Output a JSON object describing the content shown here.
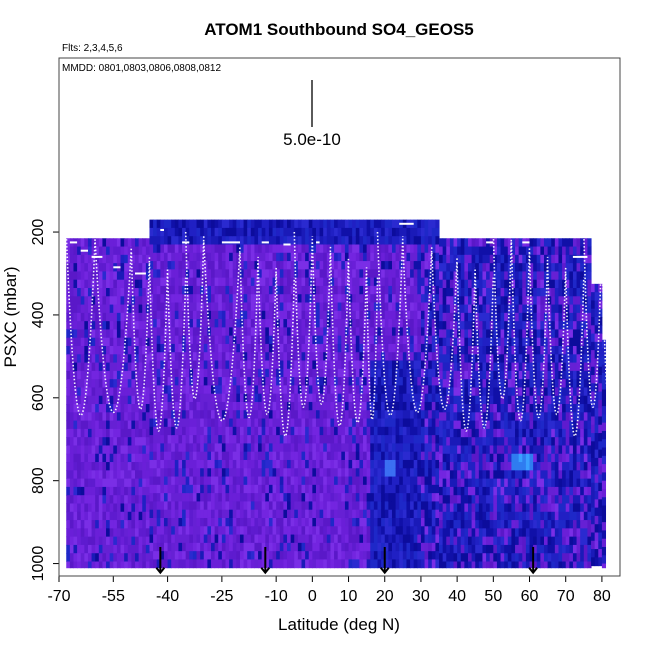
{
  "chart_data": {
    "type": "heatmap",
    "title": "ATOM1 Southbound SO4_GEOS5",
    "flights_note": "Flts: 2,3,4,5,6",
    "date_note": "MMDD: 0801,0803,0806,0808,0812",
    "scale_label": "5.0e-10",
    "xlabel": "Latitude (deg N)",
    "ylabel": "PSXC (mbar)",
    "xlim": [
      -70,
      85
    ],
    "ylim": [
      1030,
      -220
    ],
    "x_ticks": [
      -70,
      -55,
      -40,
      -25,
      -10,
      0,
      10,
      20,
      30,
      40,
      50,
      60,
      70,
      80
    ],
    "x_tick_labels": [
      "-70",
      "-55",
      "-40",
      "-25",
      "-10",
      "0",
      "10",
      "20",
      "30",
      "40",
      "50",
      "60",
      "70",
      "80"
    ],
    "y_ticks": [
      200,
      400,
      600,
      800,
      1000
    ],
    "y_tick_labels": [
      "200",
      "400",
      "600",
      "800",
      "1000"
    ],
    "flight_boundary_latitudes": [
      -42,
      -13,
      20,
      61
    ],
    "profile_turn_latitudes": [
      -68,
      -60,
      -50,
      -45,
      -40,
      -35,
      -30,
      -20,
      -15,
      -10,
      -5,
      0,
      5,
      10,
      15,
      18,
      25,
      33,
      40,
      45,
      50,
      55,
      60,
      65,
      70,
      75,
      80
    ],
    "ceiling_segments": [
      {
        "lat": [
          -67,
          -65
        ],
        "pressure_mbar": 225
      },
      {
        "lat": [
          -64,
          -62
        ],
        "pressure_mbar": 245
      },
      {
        "lat": [
          -61,
          -58
        ],
        "pressure_mbar": 260
      },
      {
        "lat": [
          -55,
          -53
        ],
        "pressure_mbar": 285
      },
      {
        "lat": [
          -49,
          -46
        ],
        "pressure_mbar": 300
      },
      {
        "lat": [
          -42,
          -41
        ],
        "pressure_mbar": 195
      },
      {
        "lat": [
          -36,
          -34
        ],
        "pressure_mbar": 225
      },
      {
        "lat": [
          -25,
          -20
        ],
        "pressure_mbar": 225
      },
      {
        "lat": [
          -14,
          -12
        ],
        "pressure_mbar": 225
      },
      {
        "lat": [
          -8,
          -6
        ],
        "pressure_mbar": 230
      },
      {
        "lat": [
          1,
          2
        ],
        "pressure_mbar": 225
      },
      {
        "lat": [
          24,
          28
        ],
        "pressure_mbar": 180
      },
      {
        "lat": [
          48,
          50
        ],
        "pressure_mbar": 225
      },
      {
        "lat": [
          58,
          60
        ],
        "pressure_mbar": 225
      },
      {
        "lat": [
          72,
          76
        ],
        "pressure_mbar": 260
      }
    ]
  }
}
